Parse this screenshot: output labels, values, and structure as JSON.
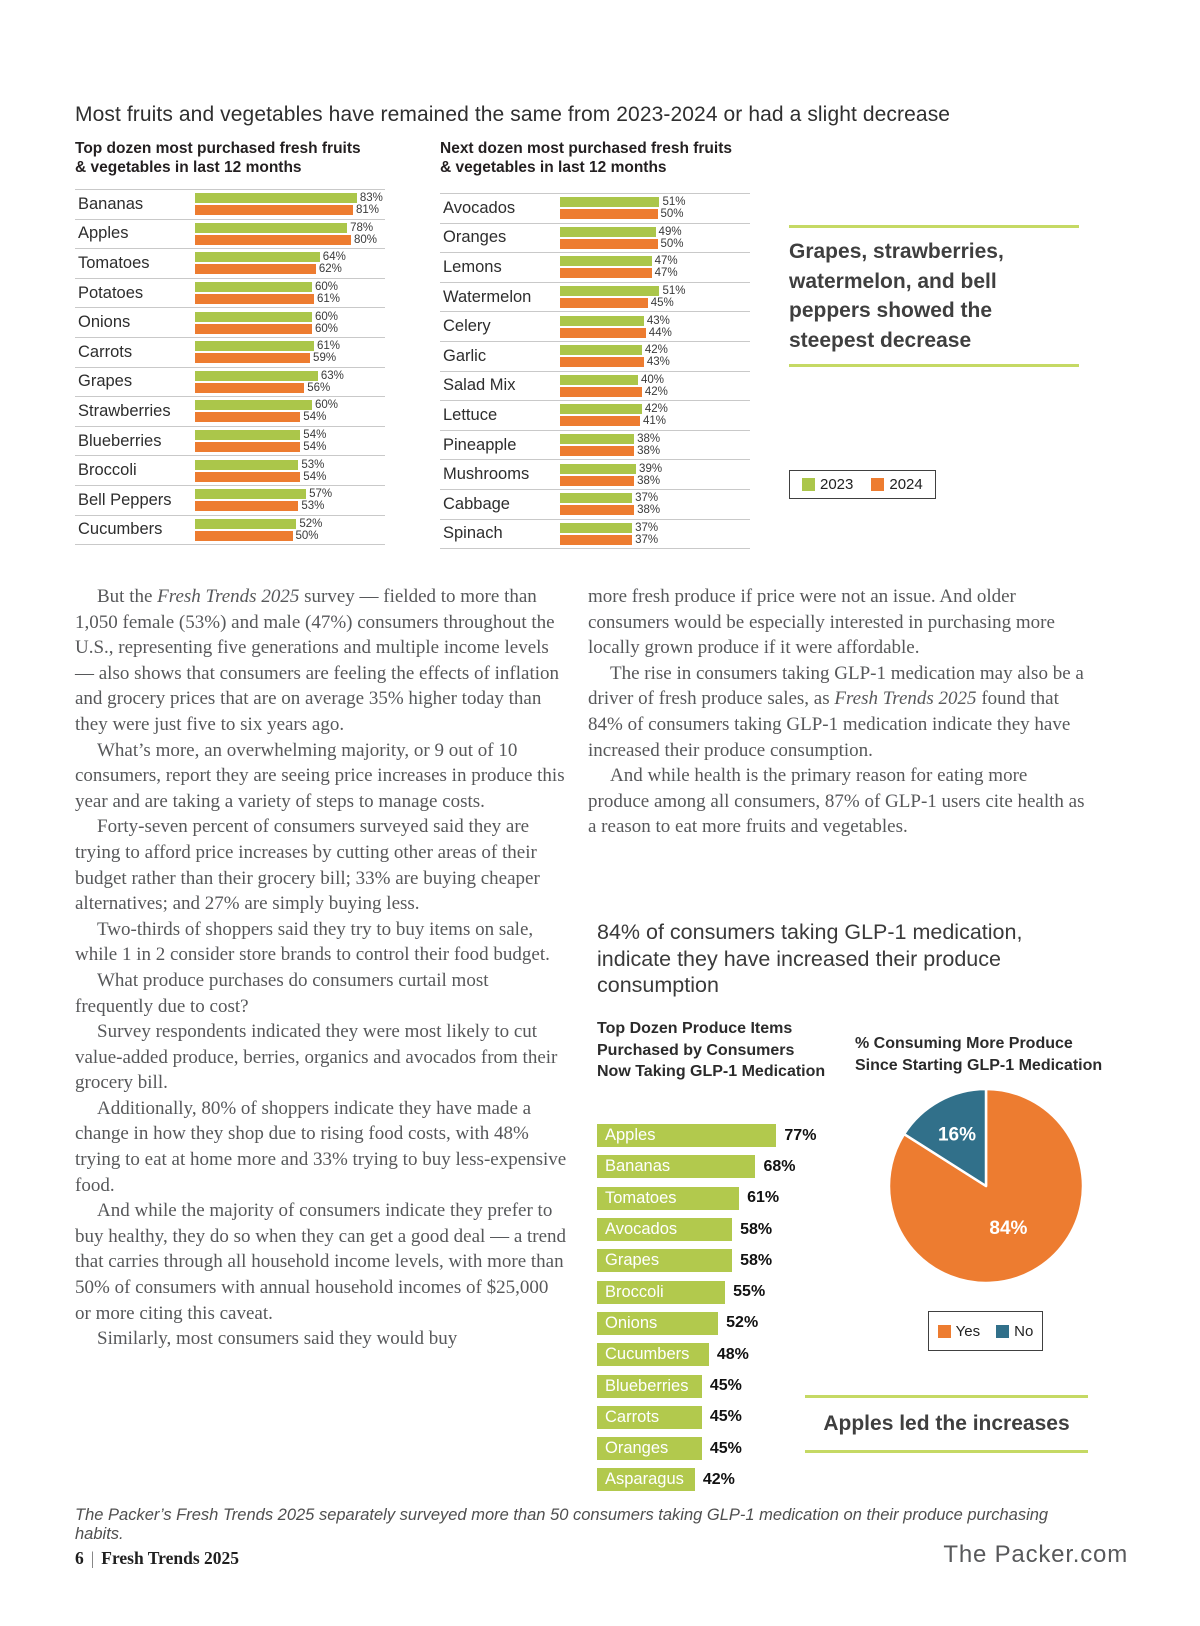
{
  "page": {
    "heading": "Most fruits and vegetables have remained the same from 2023-2024 or had a slight decrease",
    "caption": "The Packer’s Fresh Trends 2025 separately surveyed more than 50 consumers taking GLP-1 medication on their produce purchasing habits.",
    "footer": {
      "page_number": "6",
      "separator": "|",
      "publication": "Fresh Trends 2025",
      "site": "The Packer.com"
    }
  },
  "colors": {
    "bar_2023": "#abc64a",
    "bar_2024": "#ed7c30",
    "glp_bar": "#b2c94d",
    "pie_yes": "#ed7c30",
    "pie_no": "#31708a",
    "callout_rule": "#c5d964"
  },
  "callouts": {
    "steepest_decrease": "Grapes, strawberries, watermelon, and bell peppers showed the steepest decrease",
    "apples_led": "Apples led the increases"
  },
  "glp_section": {
    "heading": "84% of consumers taking GLP-1 medication, indicate they have increased their produce consumption"
  },
  "body": {
    "col1": [
      {
        "text": "But the *Fresh Trends 2025* survey — fielded to more than 1,050 female (53%) and male (47%) consumers throughout the U.S., representing five generations and multiple income levels — also shows that consumers are feeling the effects of inflation and grocery prices that are on average 35% higher today than they were just five to six years ago."
      },
      {
        "text": "What’s more, an overwhelming majority, or 9 out of 10 consumers, report they are seeing price increases in produce this year and are taking a variety of steps to manage costs."
      },
      {
        "text": "Forty-seven percent of consumers surveyed said they are trying to afford price increases by cutting other areas of their budget rather than their grocery bill; 33% are buying cheaper alternatives; and 27% are simply buying less."
      },
      {
        "text": "Two-thirds of shoppers said they try to buy items on sale, while 1 in 2 consider store brands to control their food budget."
      },
      {
        "text": "What produce purchases do consumers curtail most frequently due to cost?"
      },
      {
        "text": "Survey respondents indicated they were most likely to cut value-added produce, berries, organics and avocados from their grocery bill."
      },
      {
        "text": "Additionally, 80% of shoppers indicate they have made a change in how they shop due to rising food costs, with 48% trying to eat at home more and 33% trying to buy less-expensive food."
      },
      {
        "text": "And while the majority of consumers indicate they prefer to buy healthy, they do so when they can get a good deal — a trend that carries through all household income levels, with more than 50% of consumers with annual household incomes of $25,000 or more citing this caveat."
      },
      {
        "text": "Similarly, most consumers said they would buy"
      }
    ],
    "col2": [
      {
        "text": "more fresh produce if price were not an issue. And older consumers would be especially interested in purchasing more locally grown produce if it were affordable.",
        "indent": false
      },
      {
        "text": "The rise in consumers taking GLP-1 medication may also be a driver of fresh produce sales, as *Fresh Trends 2025* found that 84% of consumers taking GLP-1 medication indicate they have increased their produce consumption."
      },
      {
        "text": "And while health is the primary reason for eating more produce among all consumers, 87% of GLP-1 users cite health as a reason to eat more fruits and vegetables."
      }
    ]
  },
  "chart_data": [
    {
      "type": "bar",
      "orientation": "horizontal",
      "title": "Top dozen most purchased fresh fruits\n& vegetables in last 12 months",
      "categories": [
        "Bananas",
        "Apples",
        "Tomatoes",
        "Potatoes",
        "Onions",
        "Carrots",
        "Grapes",
        "Strawberries",
        "Blueberries",
        "Broccoli",
        "Bell Peppers",
        "Cucumbers"
      ],
      "series": [
        {
          "name": "2023",
          "values": [
            83,
            78,
            64,
            60,
            60,
            61,
            63,
            60,
            54,
            53,
            57,
            52
          ]
        },
        {
          "name": "2024",
          "values": [
            81,
            80,
            62,
            61,
            60,
            59,
            56,
            54,
            54,
            54,
            53,
            50
          ]
        }
      ],
      "unit": "%",
      "xlim": [
        0,
        100
      ],
      "grid": false,
      "legend_position": "right"
    },
    {
      "type": "bar",
      "orientation": "horizontal",
      "title": "Next dozen most purchased fresh fruits\n& vegetables in last 12 months",
      "categories": [
        "Avocados",
        "Oranges",
        "Lemons",
        "Watermelon",
        "Celery",
        "Garlic",
        "Salad Mix",
        "Lettuce",
        "Pineapple",
        "Mushrooms",
        "Cabbage",
        "Spinach"
      ],
      "series": [
        {
          "name": "2023",
          "values": [
            51,
            49,
            47,
            51,
            43,
            42,
            40,
            42,
            38,
            39,
            37,
            37
          ]
        },
        {
          "name": "2024",
          "values": [
            50,
            50,
            47,
            45,
            44,
            43,
            42,
            41,
            38,
            38,
            38,
            37
          ]
        }
      ],
      "unit": "%",
      "xlim": [
        0,
        100
      ],
      "grid": false,
      "legend_position": "right"
    },
    {
      "type": "bar",
      "orientation": "horizontal",
      "title": "Top Dozen Produce Items\nPurchased by Consumers\nNow Taking GLP-1 Medication",
      "categories": [
        "Apples",
        "Bananas",
        "Tomatoes",
        "Avocados",
        "Grapes",
        "Broccoli",
        "Onions",
        "Cucumbers",
        "Blueberries",
        "Carrots",
        "Oranges",
        "Asparagus"
      ],
      "values": [
        77,
        68,
        61,
        58,
        58,
        55,
        52,
        48,
        45,
        45,
        45,
        42
      ],
      "unit": "%",
      "xlim": [
        0,
        100
      ],
      "grid": false
    },
    {
      "type": "pie",
      "title": "% Consuming More Produce\nSince Starting GLP-1 Medication",
      "labels": [
        "Yes",
        "No"
      ],
      "values": [
        84,
        16
      ],
      "colors": [
        "#ed7c30",
        "#31708a"
      ],
      "legend_position": "bottom"
    }
  ]
}
